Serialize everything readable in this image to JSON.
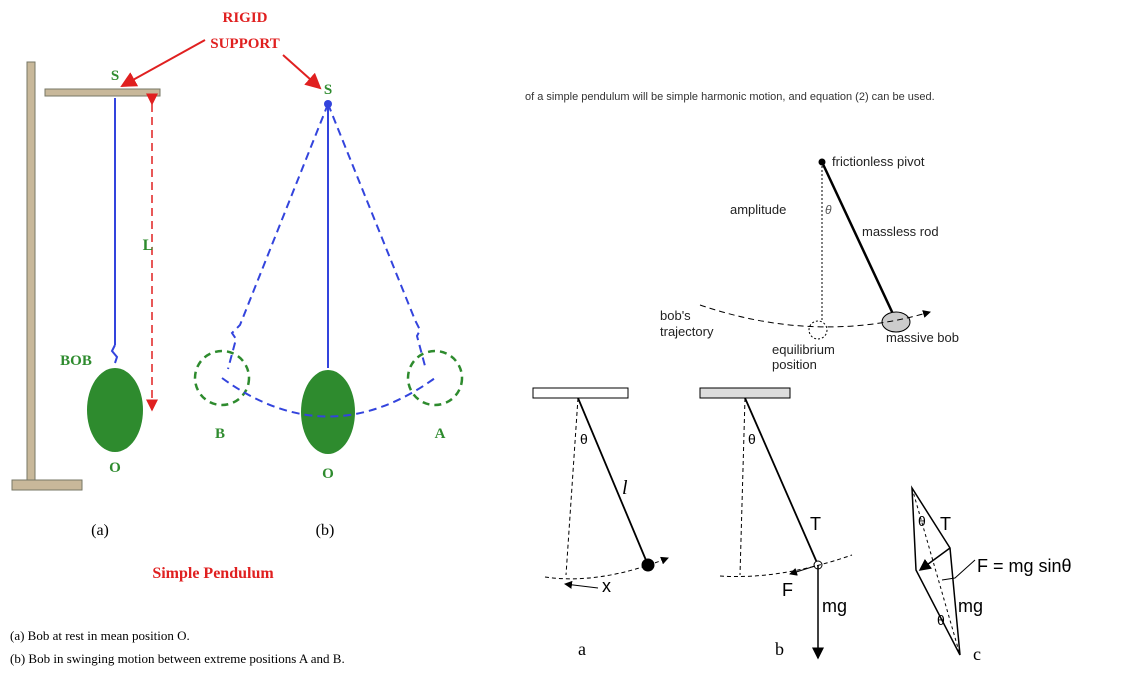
{
  "left_figure": {
    "support_label": [
      "RIGID",
      "SUPPORT"
    ],
    "support_a": "S",
    "support_b": "S",
    "length": "L",
    "bob": "BOB",
    "mean_a": "O",
    "mean_b": "O",
    "extreme_b": "B",
    "extreme_a": "A",
    "panel_a": "(a)",
    "panel_b": "(b)",
    "title": "Simple Pendulum",
    "captions": [
      "(a) Bob at rest in mean position O.",
      "(b) Bob in swinging motion between extreme positions A and B."
    ]
  },
  "right_figure": {
    "header_text": "of a simple pendulum will be simple harmonic motion, and equation (2) can be used.",
    "pivot": "frictionless pivot",
    "amplitude": "amplitude",
    "angle": "θ",
    "rod": "massless rod",
    "trajectory": [
      "bob's",
      "trajectory"
    ],
    "equilibrium": [
      "equilibrium",
      "position"
    ],
    "bob": "massive bob",
    "panel_a": {
      "angle": "θ",
      "length": "l",
      "displacement": "x",
      "label": "a"
    },
    "panel_b": {
      "angle": "θ",
      "tension": "T",
      "force": "F",
      "weight": "mg",
      "label": "b"
    },
    "panel_c": {
      "angle_top": "θ",
      "tension": "T",
      "force": "F = mg sinθ",
      "weight": "mg",
      "angle_bottom": "θ",
      "label": "c"
    }
  }
}
